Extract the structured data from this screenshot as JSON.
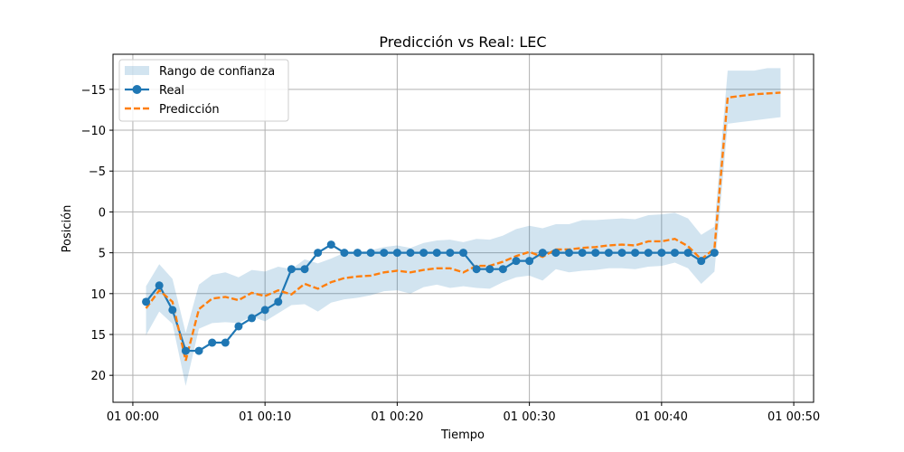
{
  "chart_data": {
    "type": "line",
    "title": "Predicción vs Real: LEC",
    "xlabel": "Tiempo",
    "ylabel": "Posición",
    "xlim_minutes": [
      -1.5,
      51.5
    ],
    "ylim": [
      23.3,
      -19.3
    ],
    "y_inverted": true,
    "grid": true,
    "legend_position": "top-left",
    "x_ticks": [
      {
        "value": 0,
        "label": "01 00:00"
      },
      {
        "value": 10,
        "label": "01 00:10"
      },
      {
        "value": 20,
        "label": "01 00:20"
      },
      {
        "value": 30,
        "label": "01 00:30"
      },
      {
        "value": 40,
        "label": "01 00:40"
      },
      {
        "value": 50,
        "label": "01 00:50"
      }
    ],
    "y_ticks": [
      {
        "value": -15,
        "label": "−15"
      },
      {
        "value": -10,
        "label": "−10"
      },
      {
        "value": -5,
        "label": "−5"
      },
      {
        "value": 0,
        "label": "0"
      },
      {
        "value": 5,
        "label": "5"
      },
      {
        "value": 10,
        "label": "10"
      },
      {
        "value": 15,
        "label": "15"
      },
      {
        "value": 20,
        "label": "20"
      }
    ],
    "series": [
      {
        "name": "Real",
        "color": "#1f77b4",
        "style": "solid-markers",
        "x": [
          1,
          2,
          3,
          4,
          5,
          6,
          7,
          8,
          9,
          10,
          11,
          12,
          13,
          14,
          15,
          16,
          17,
          18,
          19,
          20,
          21,
          22,
          23,
          24,
          25,
          26,
          27,
          28,
          29,
          30,
          31,
          32,
          33,
          34,
          35,
          36,
          37,
          38,
          39,
          40,
          41,
          42,
          43,
          44
        ],
        "y": [
          11,
          9,
          12,
          17,
          17,
          16,
          16,
          14,
          13,
          12,
          11,
          7,
          7,
          5,
          4,
          5,
          5,
          5,
          5,
          5,
          5,
          5,
          5,
          5,
          5,
          7,
          7,
          7,
          6,
          6,
          5,
          5,
          5,
          5,
          5,
          5,
          5,
          5,
          5,
          5,
          5,
          5,
          6,
          5
        ]
      },
      {
        "name": "Predicción",
        "color": "#ff7f0e",
        "style": "dashed",
        "x": [
          1,
          2,
          3,
          4,
          5,
          6,
          7,
          8,
          9,
          10,
          11,
          12,
          13,
          14,
          15,
          16,
          17,
          18,
          19,
          20,
          21,
          22,
          23,
          24,
          25,
          26,
          27,
          28,
          29,
          30,
          31,
          32,
          33,
          34,
          35,
          36,
          37,
          38,
          39,
          40,
          41,
          42,
          43,
          44,
          45,
          46,
          47,
          48,
          49
        ],
        "y": [
          11.8,
          9.6,
          11,
          18.2,
          11.9,
          10.6,
          10.4,
          10.8,
          9.9,
          10.3,
          9.6,
          10.1,
          8.8,
          9.4,
          8.6,
          8.1,
          7.9,
          7.8,
          7.4,
          7.2,
          7.4,
          7.1,
          6.9,
          6.9,
          7.4,
          6.6,
          6.6,
          6.1,
          5.4,
          4.9,
          5.5,
          4.6,
          4.6,
          4.4,
          4.3,
          4.1,
          4,
          4.1,
          3.6,
          3.6,
          3.3,
          4.2,
          5.8,
          4.5,
          -14,
          -14.2,
          -14.4,
          -14.5,
          -14.6
        ]
      }
    ],
    "confidence_band": {
      "name": "Rango de confianza",
      "color": "#1f77b4",
      "alpha": 0.2,
      "x": [
        1,
        2,
        3,
        4,
        5,
        6,
        7,
        8,
        9,
        10,
        11,
        12,
        13,
        14,
        15,
        16,
        17,
        18,
        19,
        20,
        21,
        22,
        23,
        24,
        25,
        26,
        27,
        28,
        29,
        30,
        31,
        32,
        33,
        34,
        35,
        36,
        37,
        38,
        39,
        40,
        41,
        42,
        43,
        44,
        45,
        46,
        47,
        48,
        49
      ],
      "upper": [
        15.1,
        12.2,
        13.7,
        21.3,
        14.3,
        13.6,
        13.5,
        13.6,
        12.8,
        13.4,
        12.4,
        11.4,
        11.3,
        12.2,
        11.1,
        10.7,
        10.5,
        10.2,
        9.7,
        9.6,
        10.0,
        9.2,
        8.9,
        9.3,
        9.1,
        9.3,
        9.4,
        8.6,
        8.0,
        7.8,
        8.4,
        7.0,
        7.4,
        7.2,
        7.1,
        6.9,
        6.9,
        7.0,
        6.7,
        6.6,
        6.2,
        6.9,
        8.8,
        7.3,
        -10.8,
        -11,
        -11.2,
        -11.4,
        -11.6
      ],
      "lower": [
        9.1,
        6.4,
        8.2,
        14.8,
        8.9,
        7.7,
        7.4,
        8.0,
        7.1,
        7.3,
        6.7,
        7.0,
        5.8,
        6.3,
        5.7,
        5.0,
        4.9,
        4.7,
        4.3,
        4.1,
        4.4,
        3.8,
        3.5,
        3.4,
        3.7,
        3.3,
        3.4,
        2.9,
        2.1,
        1.7,
        2.0,
        1.5,
        1.5,
        1.0,
        1.0,
        0.9,
        0.8,
        0.9,
        0.4,
        0.3,
        0.1,
        0.8,
        2.8,
        1.8,
        -17.3,
        -17.3,
        -17.3,
        -17.6,
        -17.6
      ]
    }
  }
}
